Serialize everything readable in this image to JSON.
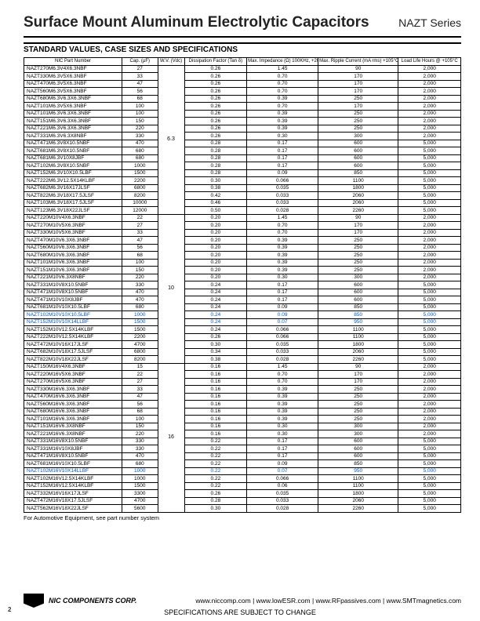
{
  "header": {
    "title": "Surface Mount Aluminum Electrolytic Capacitors",
    "series": "NAZT Series",
    "subtitle": "STANDARD VALUES, CASE SIZES AND SPECIFICATIONS"
  },
  "table": {
    "columns": [
      "NIC Part Number",
      "Cap. (µF)",
      "W.V. (Vdc)",
      "Dissipation Factor (Tan δ)",
      "Max. Impedance (Ω) 100KHz, +20°C",
      "Max. Ripple Current (mA rms) +105°C, 100KHz",
      "Load Life Hours @ +105°C"
    ],
    "groups": [
      {
        "wv": "6.3",
        "rows": [
          [
            "NAZT270M6.3V4X6.3NBF",
            "27",
            "0.26",
            "1.45",
            "90",
            "2,000",
            false
          ],
          [
            "NAZT330M6.3V5X6.3NBF",
            "33",
            "0.26",
            "0.70",
            "170",
            "2,000",
            false
          ],
          [
            "NAZT470M6.3V5X6.3NBF",
            "47",
            "0.26",
            "0.70",
            "170",
            "2,000",
            false
          ],
          [
            "NAZT560M6.3V5X6.3NBF",
            "56",
            "0.26",
            "0.70",
            "170",
            "2,000",
            false
          ],
          [
            "NAZT680M6.3V6.3X6.3NBF",
            "68",
            "0.26",
            "0.39",
            "250",
            "2,000",
            false
          ],
          [
            "NAZT101M6.3V5X6.3NBF",
            "100",
            "0.26",
            "0.70",
            "170",
            "2,000",
            false
          ],
          [
            "NAZT101M6.3V6.3X6.3NBF",
            "100",
            "0.26",
            "0.39",
            "250",
            "2,000",
            false
          ],
          [
            "NAZT151M6.3V6.3X6.3NBF",
            "150",
            "0.26",
            "0.39",
            "250",
            "2,000",
            false
          ],
          [
            "NAZT221M6.3V6.3X6.3NBF",
            "220",
            "0.26",
            "0.39",
            "250",
            "2,000",
            false
          ],
          [
            "NAZT331M6.3V6.3X8NBF",
            "330",
            "0.26",
            "0.30",
            "300",
            "2,000",
            false
          ],
          [
            "NAZT471M6.3V8X10.5NBF",
            "470",
            "0.28",
            "0.17",
            "600",
            "5,000",
            false
          ],
          [
            "NAZT681M6.3V8X10.5NBF",
            "680",
            "0.28",
            "0.17",
            "600",
            "5,000",
            false
          ],
          [
            "NAZT681M6.3V10X8JBF",
            "680",
            "0.28",
            "0.17",
            "600",
            "5,000",
            false
          ],
          [
            "NAZT102M6.3V8X10.5NBF",
            "1000",
            "0.28",
            "0.17",
            "600",
            "5,000",
            false
          ],
          [
            "NAZT152M6.3V10X10.5LBF",
            "1500",
            "0.28",
            "0.09",
            "850",
            "5,000",
            false
          ],
          [
            "NAZT222M6.3V12.5X14KLBF",
            "2200",
            "0.30",
            "0.066",
            "1100",
            "5,000",
            false
          ],
          [
            "NAZT682M6.3V16X17JLSF",
            "6800",
            "0.38",
            "0.035",
            "1800",
            "5,000",
            false
          ],
          [
            "NAZT822M6.3V18X17.5JLSF",
            "8200",
            "0.42",
            "0.033",
            "2060",
            "5,000",
            false
          ],
          [
            "NAZT103M6.3V18X17.5JLSF",
            "10000",
            "0.46",
            "0.033",
            "2060",
            "5,000",
            false
          ],
          [
            "NAZT123M6.3V18X22JLSF",
            "12000",
            "0.50",
            "0.028",
            "2260",
            "5,000",
            false
          ]
        ]
      },
      {
        "wv": "10",
        "rows": [
          [
            "NAZT220M10V4X6.3NBF",
            "22",
            "0.20",
            "1.45",
            "90",
            "2,000",
            false
          ],
          [
            "NAZT270M10V5X6.3NBF",
            "27",
            "0.20",
            "0.70",
            "170",
            "2,000",
            false
          ],
          [
            "NAZT330M10V5X6.3NBF",
            "33",
            "0.20",
            "0.70",
            "170",
            "2,000",
            false
          ],
          [
            "NAZT470M10V6.3X6.3NBF",
            "47",
            "0.20",
            "0.39",
            "250",
            "2,000",
            false
          ],
          [
            "NAZT560M10V6.3X6.3NBF",
            "56",
            "0.20",
            "0.39",
            "250",
            "2,000",
            false
          ],
          [
            "NAZT680M10V6.3X6.3NBF",
            "68",
            "0.20",
            "0.39",
            "250",
            "2,000",
            false
          ],
          [
            "NAZT101M10V6.3X6.3NBF",
            "100",
            "0.20",
            "0.39",
            "250",
            "2,000",
            false
          ],
          [
            "NAZT151M10V6.3X6.3NBF",
            "150",
            "0.20",
            "0.39",
            "250",
            "2,000",
            false
          ],
          [
            "NAZT221M10V6.3X8NBF",
            "220",
            "0.20",
            "0.30",
            "300",
            "2,000",
            false
          ],
          [
            "NAZT331M10V8X10.5NBF",
            "330",
            "0.24",
            "0.17",
            "600",
            "5,000",
            false
          ],
          [
            "NAZT471M10V8X10.5NBF",
            "470",
            "0.24",
            "0.17",
            "600",
            "5,000",
            false
          ],
          [
            "NAZT471M10V10X8JBF",
            "470",
            "0.24",
            "0.17",
            "600",
            "5,000",
            false
          ],
          [
            "NAZT681M10V10X10.5LBF",
            "680",
            "0.24",
            "0.09",
            "850",
            "5,000",
            false
          ],
          [
            "NAZT102M10V10X10.5LBF",
            "1000",
            "0.24",
            "0.09",
            "850",
            "5,000",
            true
          ],
          [
            "NAZT152M10V10X14LLBF",
            "1500",
            "0.24",
            "0.07",
            "950",
            "5,000",
            true
          ],
          [
            "NAZT152M10V12.5X14KLBF",
            "1500",
            "0.24",
            "0.066",
            "1100",
            "5,000",
            false
          ],
          [
            "NAZT222M10V12.5X14KLBF",
            "2200",
            "0.26",
            "0.066",
            "1100",
            "5,000",
            false
          ],
          [
            "NAZT472M10V16X17JLSF",
            "4700",
            "0.30",
            "0.035",
            "1800",
            "5,000",
            false
          ],
          [
            "NAZT682M10V18X17.5JLSF",
            "6800",
            "0.34",
            "0.033",
            "2060",
            "5,000",
            false
          ],
          [
            "NAZT822M10V18X22JLSF",
            "8200",
            "0.38",
            "0.028",
            "2260",
            "5,000",
            false
          ]
        ]
      },
      {
        "wv": "16",
        "rows": [
          [
            "NAZT150M16V4X6.3NBF",
            "15",
            "0.16",
            "1.45",
            "90",
            "2,000",
            false
          ],
          [
            "NAZT220M16V5X6.3NBF",
            "22",
            "0.16",
            "0.70",
            "170",
            "2,000",
            false
          ],
          [
            "NAZT270M16V5X6.3NBF",
            "27",
            "0.16",
            "0.70",
            "170",
            "2,000",
            false
          ],
          [
            "NAZT330M16V6.3X6.3NBF",
            "33",
            "0.16",
            "0.39",
            "250",
            "2,000",
            false
          ],
          [
            "NAZT470M16V6.3X6.3NBF",
            "47",
            "0.16",
            "0.39",
            "250",
            "2,000",
            false
          ],
          [
            "NAZT560M16V6.3X6.3NBF",
            "56",
            "0.16",
            "0.39",
            "250",
            "2,000",
            false
          ],
          [
            "NAZT680M16V6.3X6.3NBF",
            "68",
            "0.16",
            "0.39",
            "250",
            "2,000",
            false
          ],
          [
            "NAZT101M16V6.3X6.3NBF",
            "100",
            "0.16",
            "0.39",
            "250",
            "2,000",
            false
          ],
          [
            "NAZT151M16V6.3X8NBF",
            "150",
            "0.16",
            "0.30",
            "300",
            "2,000",
            false
          ],
          [
            "NAZT221M16V6.3X8NBF",
            "220",
            "0.16",
            "0.30",
            "300",
            "2,000",
            false
          ],
          [
            "NAZT331M16V8X10.5NBF",
            "330",
            "0.22",
            "0.17",
            "600",
            "5,000",
            false
          ],
          [
            "NAZT331M16V10X8JBF",
            "330",
            "0.22",
            "0.17",
            "600",
            "5,000",
            false
          ],
          [
            "NAZT471M16V8X10.5NBF",
            "470",
            "0.22",
            "0.17",
            "600",
            "5,000",
            false
          ],
          [
            "NAZT681M16V10X10.5LBF",
            "680",
            "0.22",
            "0.09",
            "850",
            "5,000",
            false
          ],
          [
            "NAZT102M16V10X14LLBF",
            "1000",
            "0.22",
            "0.07",
            "950",
            "5,000",
            true
          ],
          [
            "NAZT102M16V12.5X14KLBF",
            "1000",
            "0.22",
            "0.066",
            "1100",
            "5,000",
            false
          ],
          [
            "NAZT152M16V12.5X14KLBF",
            "1500",
            "0.22",
            "0.06",
            "1100",
            "5,000",
            false
          ],
          [
            "NAZT332M16V16X17JLSF",
            "3300",
            "0.26",
            "0.035",
            "1800",
            "5,000",
            false
          ],
          [
            "NAZT472M16V18X17.5JLSF",
            "4700",
            "0.28",
            "0.033",
            "2060",
            "5,000",
            false
          ],
          [
            "NAZT562M16V18X22JLSF",
            "5600",
            "0.30",
            "0.028",
            "2260",
            "5,000",
            false
          ]
        ]
      }
    ]
  },
  "footnote": "For Automotive Equipment, see part number system",
  "footer": {
    "company": "NIC COMPONENTS CORP.",
    "links": "www.niccomp.com  |  www.lowESR.com  |  www.RFpassives.com  |  www.SMTmagnetics.com",
    "disclaimer": "SPECIFICATIONS ARE SUBJECT TO CHANGE",
    "page": "2"
  }
}
